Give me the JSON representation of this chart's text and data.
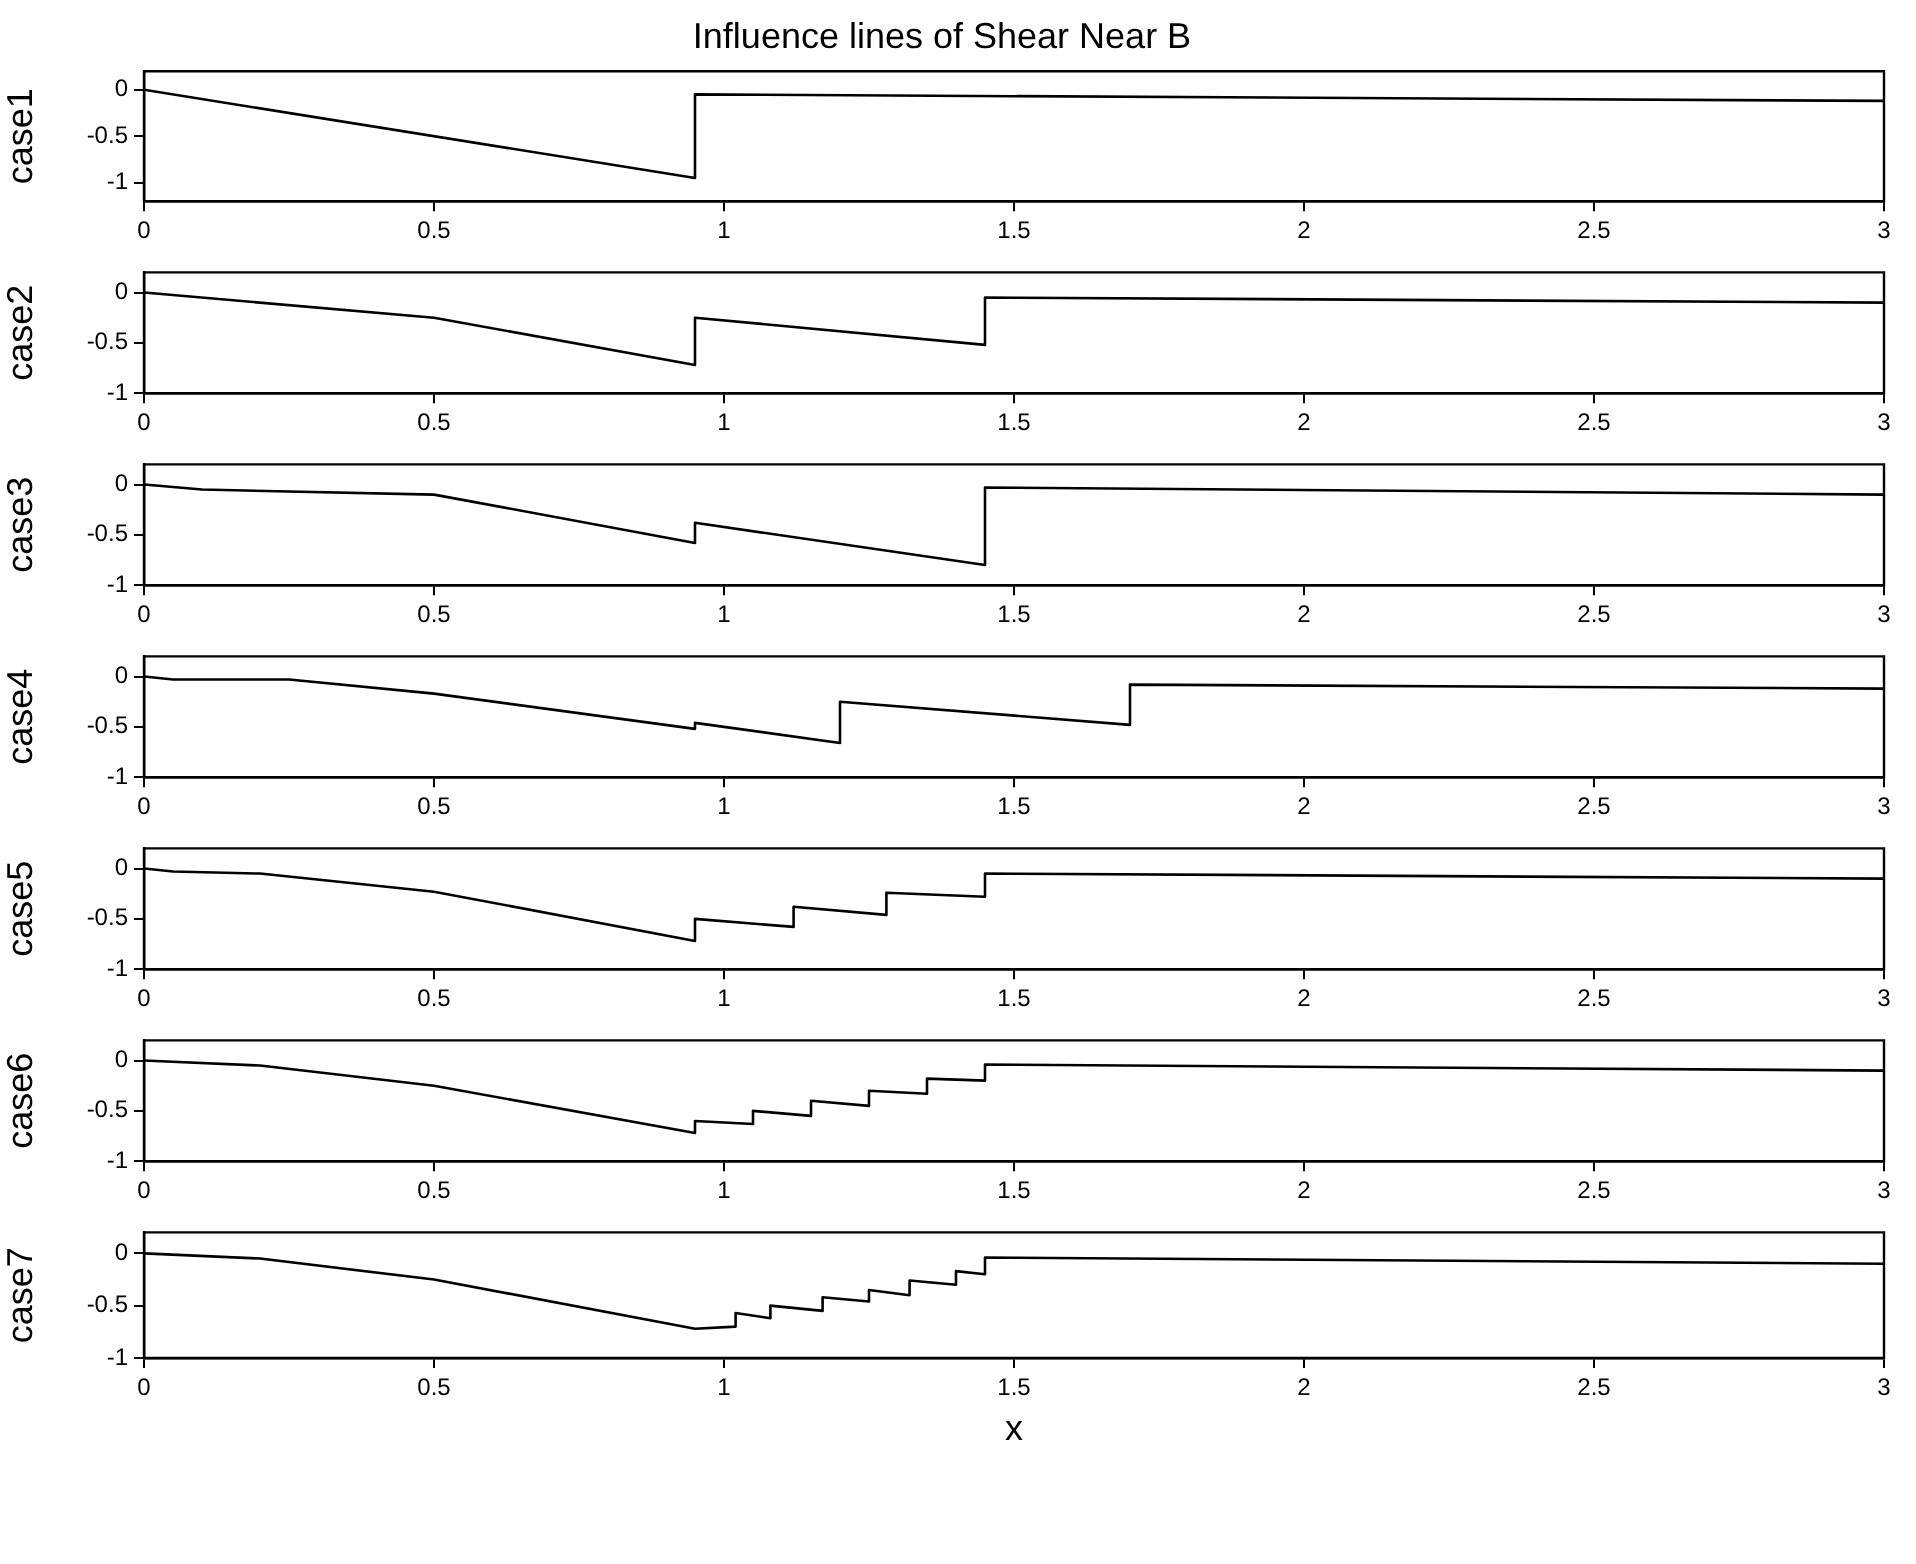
{
  "chart_data": [
    {
      "type": "line",
      "title": "Influence lines of Shear Near B",
      "ylabel": "case1",
      "xlim": [
        0,
        3
      ],
      "xticks": [
        0,
        0.5,
        1,
        1.5,
        2,
        2.5,
        3
      ],
      "ylim": [
        -1.2,
        0.2
      ],
      "yticks": [
        -1,
        -0.5,
        0
      ],
      "grid": false,
      "legend": false,
      "marker": "none",
      "line_style": "solid",
      "series": [
        {
          "color": "#000000",
          "x": [
            0,
            0.95,
            0.95,
            3
          ],
          "values": [
            0,
            -0.95,
            -0.05,
            -0.12
          ]
        }
      ]
    },
    {
      "type": "line",
      "ylabel": "case2",
      "xlim": [
        0,
        3
      ],
      "xticks": [
        0,
        0.5,
        1,
        1.5,
        2,
        2.5,
        3
      ],
      "ylim": [
        -1,
        0.2
      ],
      "yticks": [
        -1,
        -0.5,
        0
      ],
      "grid": false,
      "legend": false,
      "marker": "none",
      "line_style": "solid",
      "series": [
        {
          "color": "#000000",
          "x": [
            0,
            0.5,
            0.95,
            0.95,
            1.45,
            1.45,
            3
          ],
          "values": [
            0,
            -0.25,
            -0.72,
            -0.25,
            -0.52,
            -0.05,
            -0.1
          ]
        }
      ]
    },
    {
      "type": "line",
      "ylabel": "case3",
      "xlim": [
        0,
        3
      ],
      "xticks": [
        0,
        0.5,
        1,
        1.5,
        2,
        2.5,
        3
      ],
      "ylim": [
        -1,
        0.2
      ],
      "yticks": [
        -1,
        -0.5,
        0
      ],
      "grid": false,
      "legend": false,
      "marker": "none",
      "line_style": "solid",
      "series": [
        {
          "color": "#000000",
          "x": [
            0,
            0.1,
            0.5,
            0.95,
            0.95,
            1.45,
            1.45,
            3
          ],
          "values": [
            0,
            -0.05,
            -0.1,
            -0.58,
            -0.38,
            -0.8,
            -0.03,
            -0.1
          ]
        }
      ]
    },
    {
      "type": "line",
      "ylabel": "case4",
      "xlim": [
        0,
        3
      ],
      "xticks": [
        0,
        0.5,
        1,
        1.5,
        2,
        2.5,
        3
      ],
      "ylim": [
        -1,
        0.2
      ],
      "yticks": [
        -1,
        -0.5,
        0
      ],
      "grid": false,
      "legend": false,
      "marker": "none",
      "line_style": "solid",
      "series": [
        {
          "color": "#000000",
          "x": [
            0,
            0.05,
            0.25,
            0.5,
            0.95,
            0.95,
            1.2,
            1.2,
            1.7,
            1.7,
            3
          ],
          "values": [
            0,
            -0.03,
            -0.03,
            -0.17,
            -0.52,
            -0.46,
            -0.66,
            -0.25,
            -0.48,
            -0.08,
            -0.12
          ]
        }
      ]
    },
    {
      "type": "line",
      "ylabel": "case5",
      "xlim": [
        0,
        3
      ],
      "xticks": [
        0,
        0.5,
        1,
        1.5,
        2,
        2.5,
        3
      ],
      "ylim": [
        -1,
        0.2
      ],
      "yticks": [
        -1,
        -0.5,
        0
      ],
      "grid": false,
      "legend": false,
      "marker": "none",
      "line_style": "solid",
      "series": [
        {
          "color": "#000000",
          "x": [
            0,
            0.05,
            0.2,
            0.5,
            0.95,
            0.95,
            1.12,
            1.12,
            1.28,
            1.28,
            1.45,
            1.45,
            3
          ],
          "values": [
            0,
            -0.03,
            -0.05,
            -0.23,
            -0.72,
            -0.5,
            -0.58,
            -0.38,
            -0.46,
            -0.24,
            -0.28,
            -0.05,
            -0.1
          ]
        }
      ]
    },
    {
      "type": "line",
      "ylabel": "case6",
      "xlim": [
        0,
        3
      ],
      "xticks": [
        0,
        0.5,
        1,
        1.5,
        2,
        2.5,
        3
      ],
      "ylim": [
        -1,
        0.2
      ],
      "yticks": [
        -1,
        -0.5,
        0
      ],
      "grid": false,
      "legend": false,
      "marker": "none",
      "line_style": "solid",
      "series": [
        {
          "color": "#000000",
          "x": [
            0,
            0.2,
            0.5,
            0.95,
            0.95,
            1.05,
            1.05,
            1.15,
            1.15,
            1.25,
            1.25,
            1.35,
            1.35,
            1.45,
            1.45,
            3
          ],
          "values": [
            0,
            -0.05,
            -0.25,
            -0.72,
            -0.6,
            -0.63,
            -0.5,
            -0.55,
            -0.4,
            -0.45,
            -0.3,
            -0.33,
            -0.18,
            -0.2,
            -0.04,
            -0.1
          ]
        }
      ]
    },
    {
      "type": "line",
      "ylabel": "case7",
      "xlabel": "x",
      "xlim": [
        0,
        3
      ],
      "xticks": [
        0,
        0.5,
        1,
        1.5,
        2,
        2.5,
        3
      ],
      "ylim": [
        -1,
        0.2
      ],
      "yticks": [
        -1,
        -0.5,
        0
      ],
      "grid": false,
      "legend": false,
      "marker": "none",
      "line_style": "solid",
      "series": [
        {
          "color": "#000000",
          "x": [
            0,
            0.2,
            0.5,
            0.95,
            1.02,
            1.02,
            1.08,
            1.08,
            1.17,
            1.17,
            1.25,
            1.25,
            1.32,
            1.32,
            1.4,
            1.4,
            1.45,
            1.45,
            3
          ],
          "values": [
            0,
            -0.05,
            -0.25,
            -0.72,
            -0.7,
            -0.57,
            -0.62,
            -0.5,
            -0.55,
            -0.42,
            -0.46,
            -0.35,
            -0.4,
            -0.26,
            -0.3,
            -0.17,
            -0.2,
            -0.04,
            -0.1
          ]
        }
      ]
    }
  ]
}
